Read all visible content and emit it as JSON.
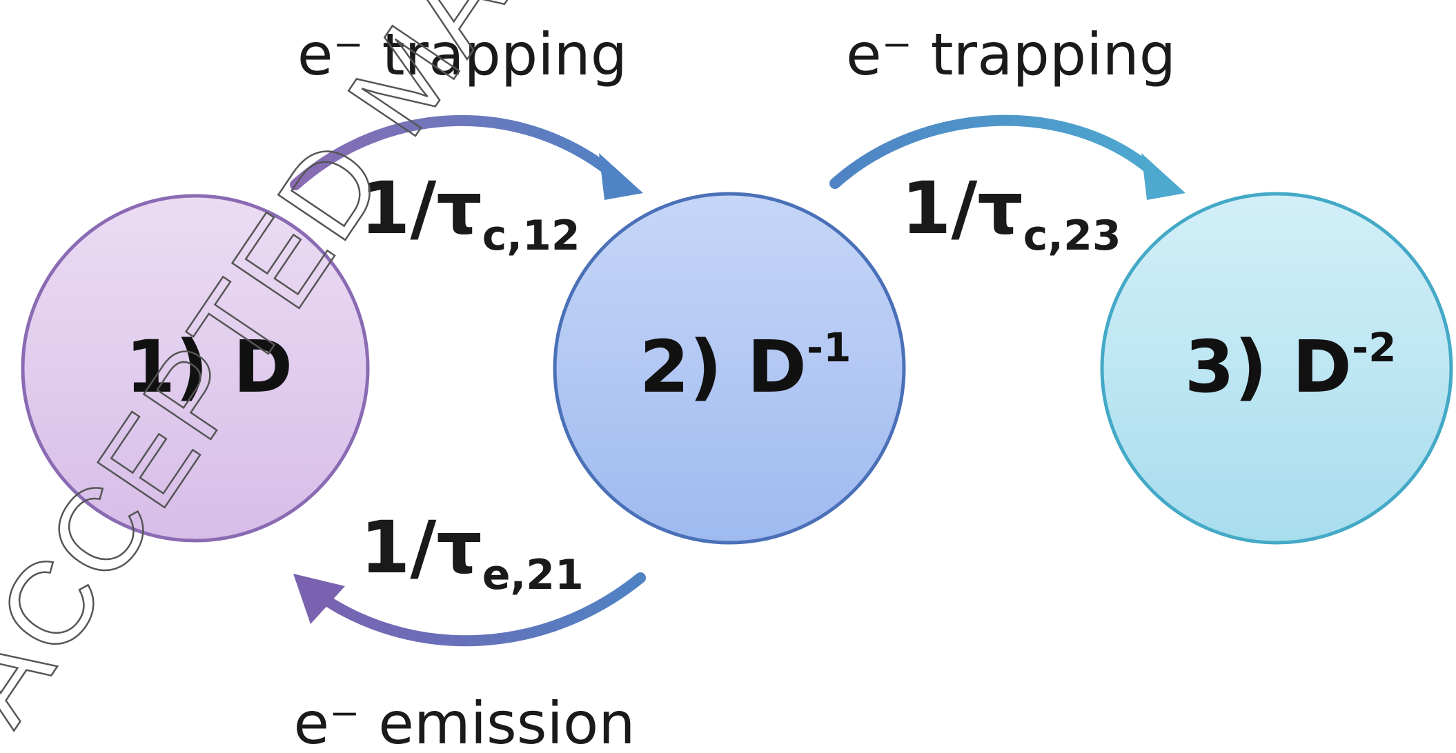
{
  "states": [
    {
      "id": "1",
      "prefix": "1) D",
      "sup": ""
    },
    {
      "id": "2",
      "prefix": "2) D",
      "sup": "-1"
    },
    {
      "id": "3",
      "prefix": "3) D",
      "sup": "-2"
    }
  ],
  "transitions": {
    "t12": {
      "caption": "e⁻ trapping",
      "rate": "1/τ",
      "sub": "c,12"
    },
    "t23": {
      "caption": "e⁻ trapping",
      "rate": "1/τ",
      "sub": "c,23"
    },
    "t21": {
      "caption": "e⁻ emission",
      "rate": "1/τ",
      "sub": "e,21"
    }
  },
  "watermark": "ACCEPTED MANUSCRIPT",
  "colors": {
    "state1_fill": "#e4d2ee",
    "state1_stroke": "#8a6bb3",
    "state2_fill": "#b3c9f5",
    "state2_stroke": "#4a70b8",
    "state3_fill": "#bfe6f2",
    "state3_stroke": "#43a9c6",
    "arrow_purple": "#7a62b0",
    "arrow_blue": "#4f83c4",
    "arrow_cyan": "#4ea9cf"
  }
}
